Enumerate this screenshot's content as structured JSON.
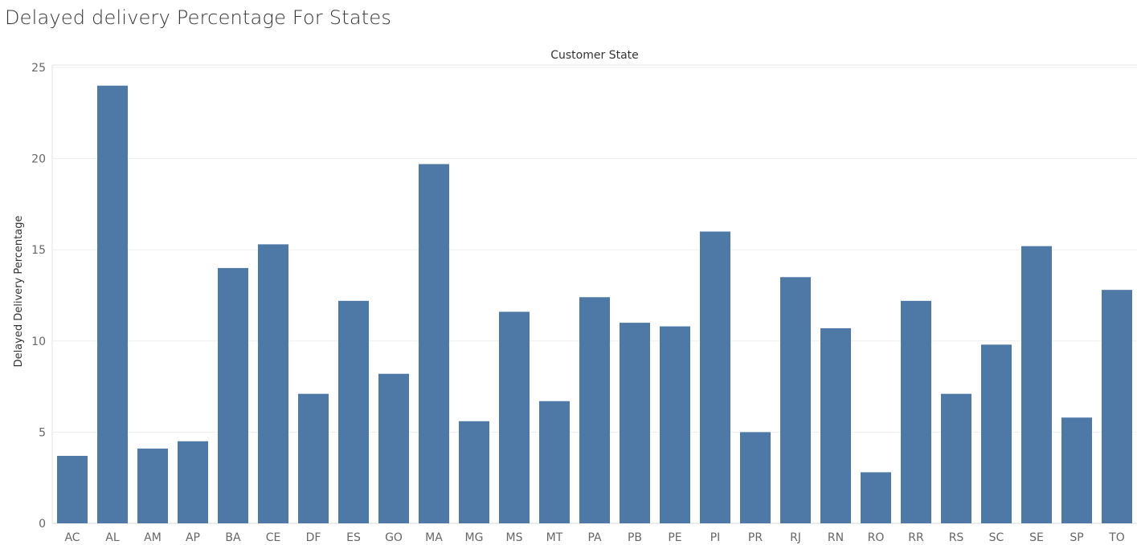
{
  "title": "Delayed delivery Percentage For States",
  "chart_data": {
    "type": "bar",
    "title": "Delayed delivery Percentage For States",
    "column_header": "Customer State",
    "ylabel": "Delayed Delivery Percentage",
    "xlabel": "",
    "ylim": [
      0,
      25
    ],
    "yticks": [
      0,
      5,
      10,
      15,
      20,
      25
    ],
    "grid": true,
    "bar_color": "#4e79a7",
    "categories": [
      "AC",
      "AL",
      "AM",
      "AP",
      "BA",
      "CE",
      "DF",
      "ES",
      "GO",
      "MA",
      "MG",
      "MS",
      "MT",
      "PA",
      "PB",
      "PE",
      "PI",
      "PR",
      "RJ",
      "RN",
      "RO",
      "RR",
      "RS",
      "SC",
      "SE",
      "SP",
      "TO"
    ],
    "values": [
      3.7,
      24.0,
      4.1,
      4.5,
      14.0,
      15.3,
      7.1,
      12.2,
      8.2,
      19.7,
      5.6,
      11.6,
      6.7,
      12.4,
      11.0,
      10.8,
      16.0,
      5.0,
      13.5,
      10.7,
      2.8,
      12.2,
      7.1,
      9.8,
      15.2,
      5.8,
      12.8
    ]
  }
}
